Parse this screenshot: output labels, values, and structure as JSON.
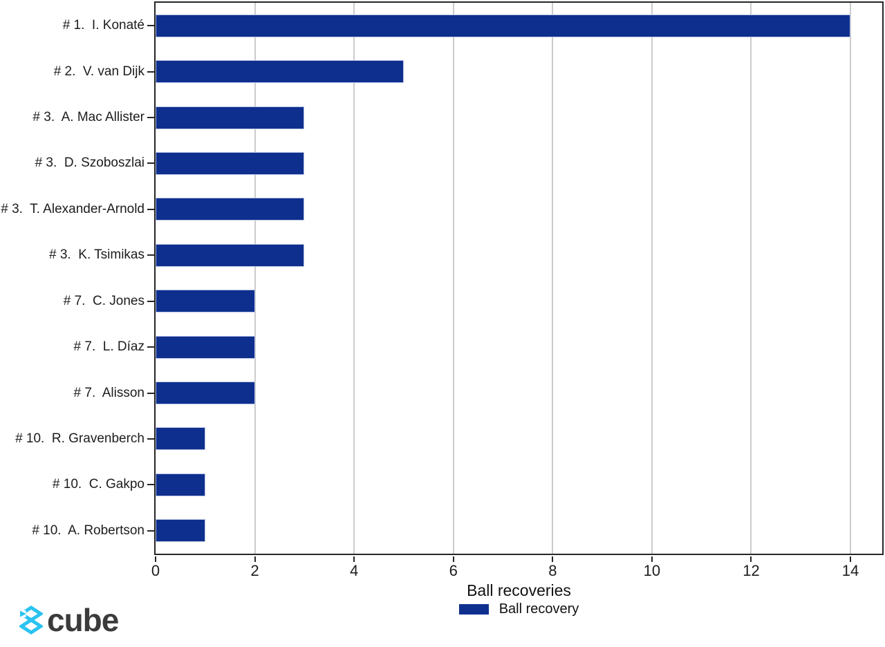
{
  "chart_data": {
    "type": "bar",
    "orientation": "horizontal",
    "xlabel": "Ball recoveries",
    "categories": [
      "# 1.  I. Konaté",
      "# 2.  V. van Dijk",
      "# 3.  A. Mac Allister",
      "# 3.  D. Szoboszlai",
      "# 3.  T. Alexander-Arnold",
      "# 3.  K. Tsimikas",
      "# 7.  C. Jones",
      "# 7.  L. Díaz",
      "# 7.  Alisson",
      "# 10.  R. Gravenberch",
      "# 10.  C. Gakpo",
      "# 10.  A. Robertson"
    ],
    "series": [
      {
        "name": "Ball recovery",
        "values": [
          14,
          5,
          3,
          3,
          3,
          3,
          2,
          2,
          2,
          1,
          1,
          1
        ]
      }
    ],
    "xticks": [
      0,
      2,
      4,
      6,
      8,
      10,
      12,
      14
    ],
    "xlim": [
      0,
      14.64
    ],
    "grid": "vertical",
    "legend_position": "bottom-center",
    "bar_color": "#0e2f8e",
    "gridline_color": "#cbcbcb"
  },
  "legend": {
    "label": "Ball recovery",
    "swatch_color": "#0e2f8e"
  },
  "branding": {
    "text": "cube",
    "text_color": "#3b3b3b",
    "icon": "cube-logo-icon",
    "icon_color": "#2bc3f0"
  }
}
